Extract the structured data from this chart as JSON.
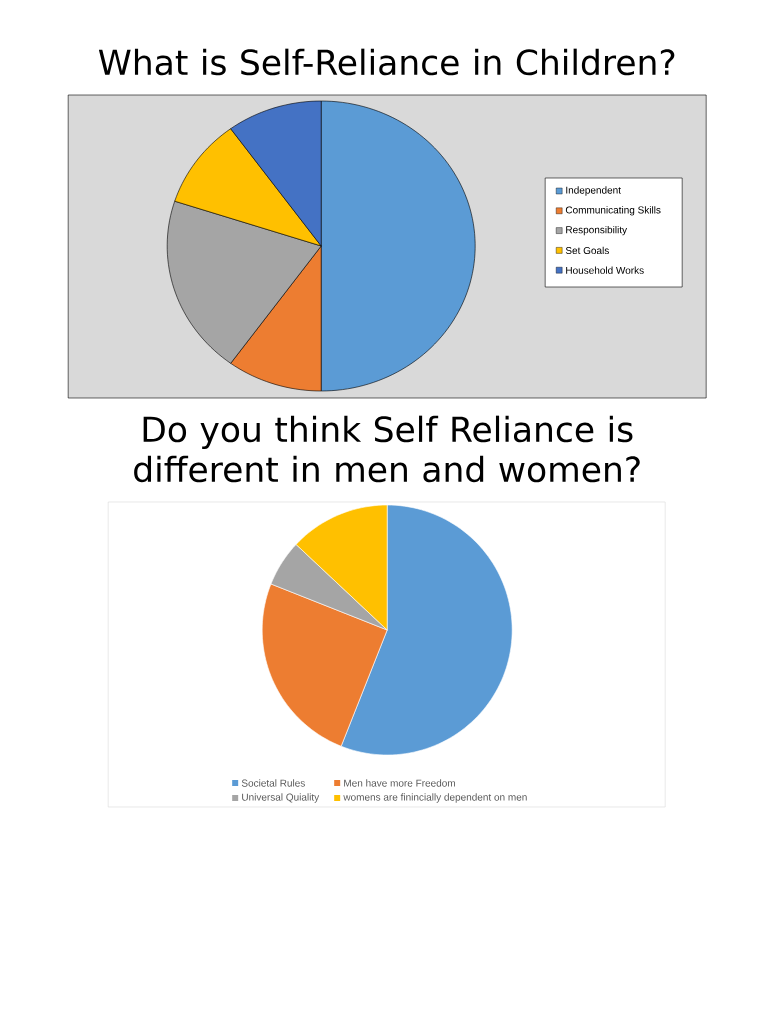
{
  "chart_data": [
    {
      "type": "pie",
      "title": "What is Self-Reliance in Children?",
      "categories": [
        "Independent",
        "Communicating Skills",
        "Responsibility",
        "Set Goals",
        "Household Works"
      ],
      "values": [
        50,
        10,
        20,
        10,
        10
      ],
      "colors": [
        "#5b9bd5",
        "#ed7d31",
        "#a5a5a5",
        "#ffc000",
        "#4472c4"
      ],
      "legend": "right"
    },
    {
      "type": "pie",
      "title": "Do you think Self Reliance is different in men and women?",
      "categories": [
        "Societal Rules",
        "Men have more Freedom",
        "Universal Quiality",
        "womens are finincially dependent on men"
      ],
      "values": [
        56,
        25,
        6,
        13
      ],
      "colors": [
        "#5b9bd5",
        "#ed7d31",
        "#a5a5a5",
        "#ffc000"
      ],
      "legend": "bottom"
    }
  ]
}
